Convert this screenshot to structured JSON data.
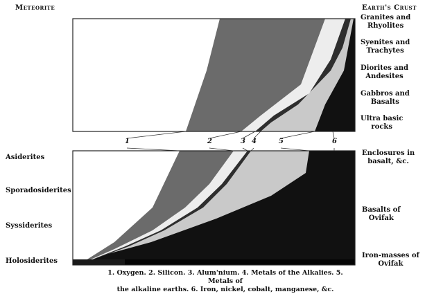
{
  "headings": {
    "left": "Meteorite",
    "right": "Earth's Crust"
  },
  "crust_labels": [
    {
      "line1": "Granites and",
      "line2": "Rhyolites"
    },
    {
      "line1": "Syenites and",
      "line2": "Trachytes"
    },
    {
      "line1": "Diorites and",
      "line2": "Andesites"
    },
    {
      "line1": "Gabbros and",
      "line2": "Basalts"
    },
    {
      "line1": "Ultra basic",
      "line2": "rocks"
    }
  ],
  "lower_right_labels": [
    {
      "line1": "Enclosures in",
      "line2": "basalt, &c."
    },
    {
      "line1": "Basalts of",
      "line2": "Ovifak"
    },
    {
      "line1": "Iron-masses of",
      "line2": "Ovifak"
    }
  ],
  "meteorite_labels": [
    "Asiderites",
    "Sporadosiderites",
    "Syssiderites",
    "Holosiderites"
  ],
  "element_numbers": [
    "1",
    "2",
    "3",
    "4",
    "5",
    "6"
  ],
  "caption": {
    "line1": "1. Oxygen.  2. Silicon.  3. Alum'nium.  4. Metals of the Alkalies.  5. Metals of",
    "line2": "the alkaline earths.  6. Iron, nickel, cobalt, manganese, &c."
  },
  "fills": [
    "#ffffff",
    "#6b6b6b",
    "#ededed",
    "#2e2e2e",
    "#c9c9c9",
    "#111111"
  ]
}
